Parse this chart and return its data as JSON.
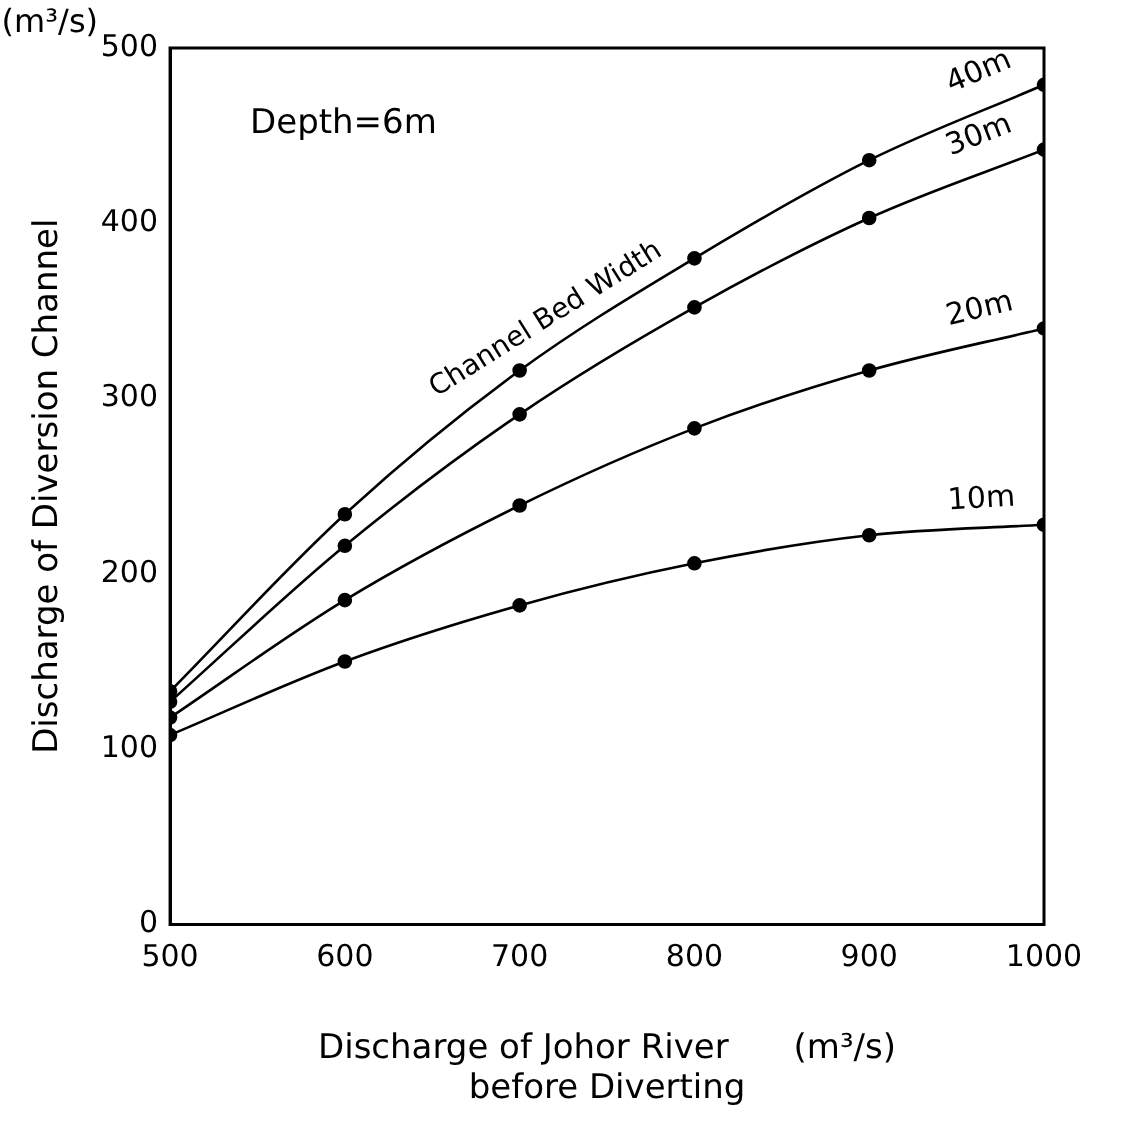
{
  "chart_data": {
    "type": "line",
    "xlabel": "Discharge of Johor River      (m³/s)\nbefore Diverting",
    "ylabel": "Discharge of Diversion Channel",
    "annotations": [
      "(m³/s)",
      "Depth=6m",
      "Channel Bed Width"
    ],
    "x": [
      500,
      600,
      700,
      800,
      900,
      1000
    ],
    "series": [
      {
        "name": "40m",
        "color": "#000000",
        "values": [
          133,
          234,
          316,
          380,
          436,
          479
        ]
      },
      {
        "name": "30m",
        "color": "#000000",
        "values": [
          127,
          216,
          291,
          352,
          403,
          442
        ]
      },
      {
        "name": "20m",
        "color": "#000000",
        "values": [
          118,
          185,
          239,
          283,
          316,
          340
        ]
      },
      {
        "name": "10m",
        "color": "#000000",
        "values": [
          108,
          150,
          182,
          206,
          222,
          228
        ]
      }
    ],
    "xlim": [
      500,
      1000
    ],
    "xticks": [
      500,
      600,
      700,
      800,
      900,
      1000
    ],
    "ylim": [
      0,
      500
    ],
    "yticks": [
      0,
      100,
      200,
      300,
      400,
      500
    ],
    "grid": false,
    "legend": false,
    "marker": "circle",
    "line_style": "solid"
  }
}
